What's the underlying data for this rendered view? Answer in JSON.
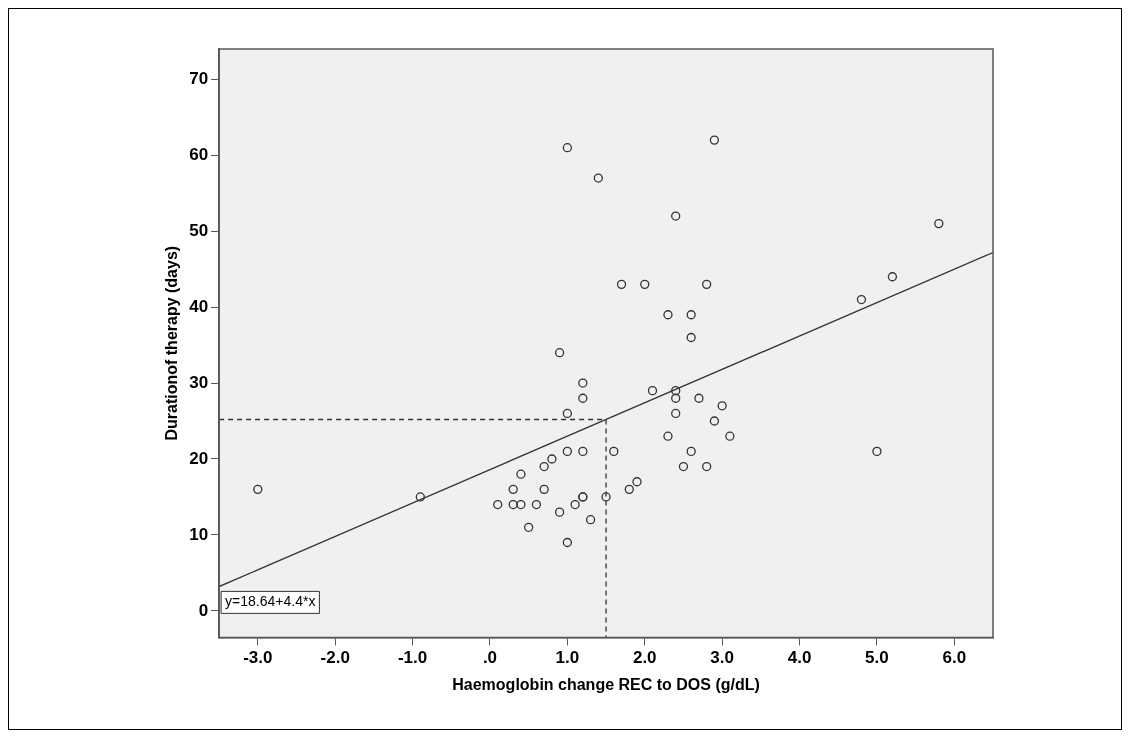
{
  "chart_data": {
    "type": "scatter",
    "xlabel": "Haemoglobin change REC to DOS (g/dL)",
    "ylabel": "Durationof therapy (days)",
    "xlim": [
      -3.5,
      6.5
    ],
    "ylim": [
      -3.5,
      74
    ],
    "xticks": [
      {
        "value": -3,
        "label": "-3.0"
      },
      {
        "value": -2,
        "label": "-2.0"
      },
      {
        "value": -1,
        "label": "-1.0"
      },
      {
        "value": 0,
        "label": ".0"
      },
      {
        "value": 1,
        "label": "1.0"
      },
      {
        "value": 2,
        "label": "2.0"
      },
      {
        "value": 3,
        "label": "3.0"
      },
      {
        "value": 4,
        "label": "4.0"
      },
      {
        "value": 5,
        "label": "5.0"
      },
      {
        "value": 6,
        "label": "6.0"
      }
    ],
    "yticks": [
      0,
      10,
      20,
      30,
      40,
      50,
      60,
      70
    ],
    "grid": false,
    "legend": false,
    "marker": "circle",
    "annotations": [
      "y=18.64+4.4*x"
    ],
    "series": [
      {
        "color": "#333333",
        "x": [
          1.0,
          2.9,
          1.4,
          2.4,
          1.7,
          2.0,
          2.8,
          2.3,
          2.6,
          2.6,
          0.9,
          1.2,
          1.2,
          1.0,
          2.1,
          2.4,
          2.4,
          2.7,
          3.0,
          2.4,
          2.9,
          2.3,
          3.1,
          2.6,
          1.0,
          1.2,
          1.6,
          2.5,
          2.8,
          0.8,
          0.7,
          0.4,
          1.9,
          1.8,
          0.3,
          0.7,
          0.1,
          0.3,
          0.4,
          0.6,
          1.1,
          1.2,
          1.2,
          1.5,
          0.9,
          0.5,
          1.3,
          1.0,
          -3.0,
          -0.9,
          5.8,
          5.2,
          4.8,
          5.0
        ],
        "values": [
          61,
          62,
          57,
          52,
          43,
          43,
          43,
          39,
          39,
          36,
          34,
          30,
          28,
          26,
          29,
          29,
          28,
          28,
          27,
          26,
          25,
          23,
          23,
          21,
          21,
          21,
          21,
          19,
          19,
          20,
          19,
          18,
          17,
          16,
          16,
          16,
          14,
          14,
          14,
          14,
          14,
          15,
          15,
          15,
          13,
          11,
          12,
          9,
          16,
          15,
          51,
          44,
          41,
          21
        ]
      },
      {
        "type": "line",
        "color": "#333333",
        "line_style": "solid",
        "marker": "none",
        "x": [
          -3.5,
          6.5
        ],
        "values": [
          3.2,
          47.2
        ]
      },
      {
        "type": "line",
        "color": "#333333",
        "line_style": "dashed",
        "marker": "none",
        "x": [
          -3.5,
          1.5,
          1.5
        ],
        "values": [
          25.2,
          25.2,
          -3.5
        ]
      }
    ]
  }
}
